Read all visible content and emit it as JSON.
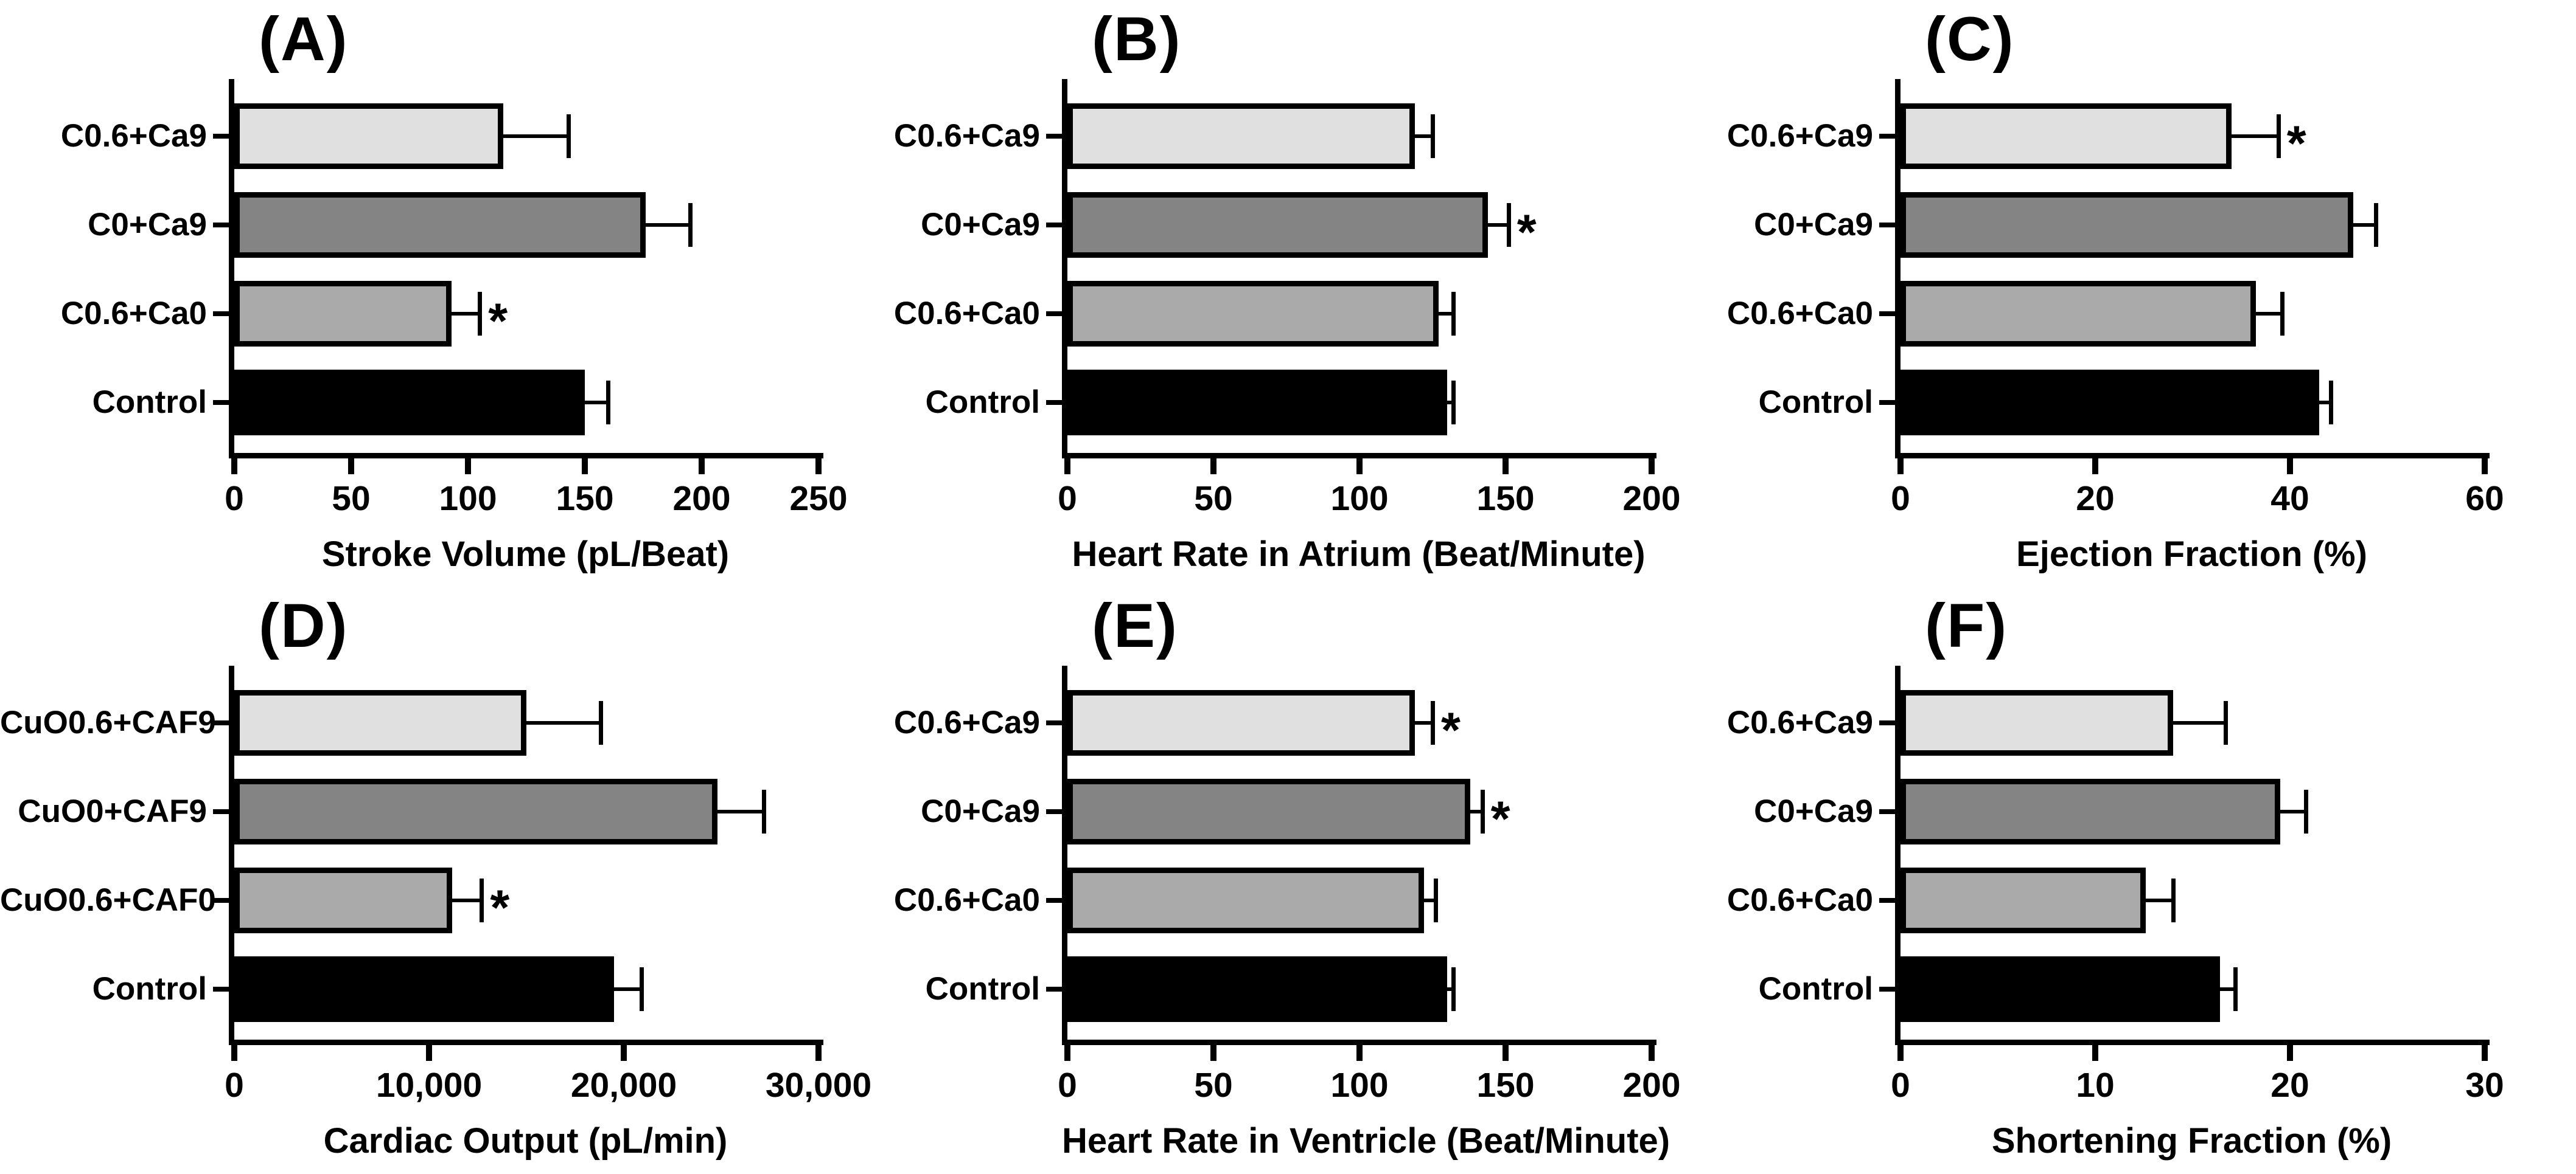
{
  "style": {
    "background": "#ffffff",
    "axis_color": "#000000",
    "bar_border_color": "#000000",
    "bar_colors": [
      "#e0e0e0",
      "#848484",
      "#aaaaaa",
      "#000000"
    ],
    "asterisk_glyph": "*"
  },
  "chart_data": [
    {
      "type": "bar",
      "orientation": "horizontal",
      "panel_label": "(A)",
      "xlabel": "Stroke Volume (pL/Beat)",
      "xlim": [
        0,
        250
      ],
      "xticks": [
        0,
        50,
        100,
        150,
        200,
        250
      ],
      "xtick_labels": [
        "0",
        "50",
        "100",
        "150",
        "200",
        "250"
      ],
      "categories": [
        "C0.6+Ca9",
        "C0+Ca9",
        "C0.6+Ca0",
        "Control"
      ],
      "values": [
        115,
        176,
        93,
        150
      ],
      "errors": [
        28,
        19,
        12,
        10
      ],
      "significant": [
        false,
        false,
        true,
        false
      ],
      "grid": false,
      "legend": false
    },
    {
      "type": "bar",
      "orientation": "horizontal",
      "panel_label": "(B)",
      "xlabel": "Heart Rate in Atrium (Beat/Minute)",
      "xlim": [
        0,
        200
      ],
      "xticks": [
        0,
        50,
        100,
        150,
        200
      ],
      "xtick_labels": [
        "0",
        "50",
        "100",
        "150",
        "200"
      ],
      "categories": [
        "C0.6+Ca9",
        "C0+Ca9",
        "C0.6+Ca0",
        "Control"
      ],
      "values": [
        119,
        144,
        127,
        130
      ],
      "errors": [
        6,
        7,
        5,
        2
      ],
      "significant": [
        false,
        true,
        false,
        false
      ],
      "grid": false,
      "legend": false
    },
    {
      "type": "bar",
      "orientation": "horizontal",
      "panel_label": "(C)",
      "xlabel": "Ejection Fraction (%)",
      "xlim": [
        0,
        60
      ],
      "xticks": [
        0,
        20,
        40,
        60
      ],
      "xtick_labels": [
        "0",
        "20",
        "40",
        "60"
      ],
      "categories": [
        "C0.6+Ca9",
        "C0+Ca9",
        "C0.6+Ca0",
        "Control"
      ],
      "values": [
        34,
        46.5,
        36.5,
        43
      ],
      "errors": [
        4.8,
        2.3,
        2.7,
        1.2
      ],
      "significant": [
        true,
        false,
        false,
        false
      ],
      "grid": false,
      "legend": false
    },
    {
      "type": "bar",
      "orientation": "horizontal",
      "panel_label": "(D)",
      "xlabel": "Cardiac Output (pL/min)",
      "xlim": [
        0,
        30000
      ],
      "xticks": [
        0,
        10000,
        20000,
        30000
      ],
      "xtick_labels": [
        "0",
        "10,000",
        "20,000",
        "30,000"
      ],
      "categories": [
        "CuO0.6+CAF9",
        "CuO0+CAF9",
        "CuO0.6+CAF0",
        "Control"
      ],
      "values": [
        15000,
        24800,
        11200,
        19500
      ],
      "errors": [
        3800,
        2400,
        1500,
        1400
      ],
      "significant": [
        false,
        false,
        true,
        false
      ],
      "grid": false,
      "legend": false
    },
    {
      "type": "bar",
      "orientation": "horizontal",
      "panel_label": "(E)",
      "xlabel": "Heart Rate in Ventricle (Beat/Minute)",
      "xlim": [
        0,
        200
      ],
      "xticks": [
        0,
        50,
        100,
        150,
        200
      ],
      "xtick_labels": [
        "0",
        "50",
        "100",
        "150",
        "200"
      ],
      "categories": [
        "C0.6+Ca9",
        "C0+Ca9",
        "C0.6+Ca0",
        "Control"
      ],
      "values": [
        119,
        138,
        122,
        130
      ],
      "errors": [
        6,
        4,
        4,
        2
      ],
      "significant": [
        true,
        true,
        false,
        false
      ],
      "grid": false,
      "legend": false
    },
    {
      "type": "bar",
      "orientation": "horizontal",
      "panel_label": "(F)",
      "xlabel": "Shortening Fraction (%)",
      "xlim": [
        0,
        30
      ],
      "xticks": [
        0,
        10,
        20,
        30
      ],
      "xtick_labels": [
        "0",
        "10",
        "20",
        "30"
      ],
      "categories": [
        "C0.6+Ca9",
        "C0+Ca9",
        "C0.6+Ca0",
        "Control"
      ],
      "values": [
        14,
        19.5,
        12.6,
        16.4
      ],
      "errors": [
        2.7,
        1.3,
        1.4,
        0.8
      ],
      "significant": [
        false,
        false,
        false,
        false
      ],
      "grid": false,
      "legend": false
    }
  ]
}
